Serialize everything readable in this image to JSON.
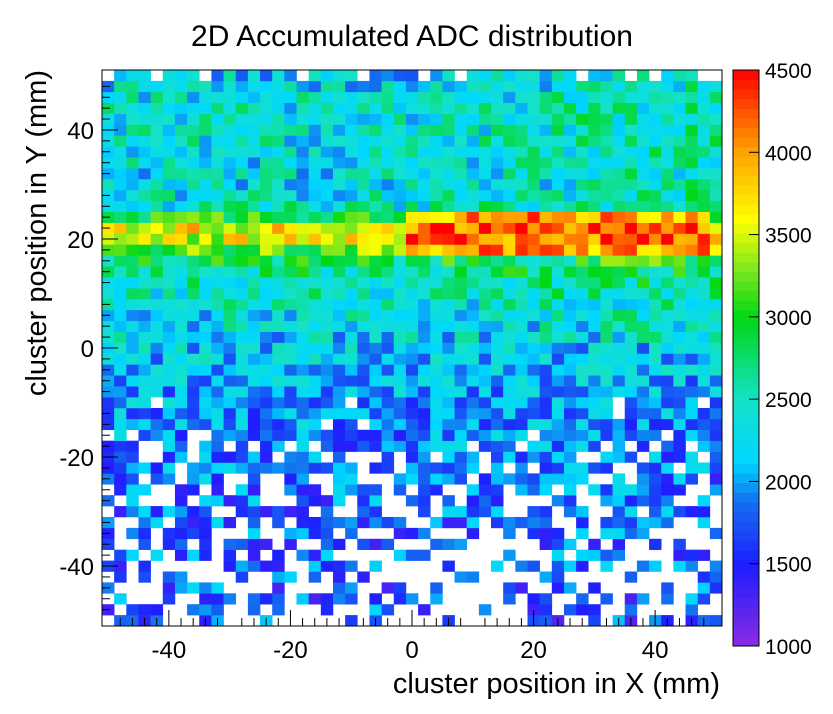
{
  "chart_data": {
    "type": "heatmap",
    "title": "2D Accumulated ADC distribution",
    "xlabel": "cluster position in X (mm)",
    "ylabel": "cluster position in Y (mm)",
    "xlim": [
      -51,
      51
    ],
    "ylim": [
      -51,
      51
    ],
    "x_ticks": [
      -40,
      -20,
      0,
      20,
      40
    ],
    "y_ticks": [
      -40,
      -20,
      0,
      20,
      40
    ],
    "bins": {
      "nx": 51,
      "ny": 51,
      "x_min": -51,
      "x_max": 51,
      "y_min": -51,
      "y_max": 51
    },
    "zlim": [
      1000,
      4500
    ],
    "colorbar_ticks": [
      1000,
      1500,
      2000,
      2500,
      3000,
      3500,
      4000,
      4500
    ],
    "palette": "rainbow",
    "empty_bins": "white",
    "grid": false,
    "row_means": [
      {
        "y": 50,
        "adc": 2200
      },
      {
        "y": 46,
        "adc": 2350
      },
      {
        "y": 42,
        "adc": 2400
      },
      {
        "y": 36,
        "adc": 2350
      },
      {
        "y": 30,
        "adc": 2300
      },
      {
        "y": 26,
        "adc": 2450
      },
      {
        "y": 22,
        "adc": 3650
      },
      {
        "y": 20,
        "adc": 3500
      },
      {
        "y": 16,
        "adc": 2800
      },
      {
        "y": 12,
        "adc": 2500
      },
      {
        "y": 6,
        "adc": 2300
      },
      {
        "y": 0,
        "adc": 2150
      },
      {
        "y": -6,
        "adc": 2050
      },
      {
        "y": -12,
        "adc": 1950
      },
      {
        "y": -20,
        "adc": 1850
      },
      {
        "y": -30,
        "adc": 1800
      },
      {
        "y": -40,
        "adc": 1750
      },
      {
        "y": -50,
        "adc": 1700
      }
    ],
    "hot_region": {
      "x_range": [
        0,
        48
      ],
      "y_range": [
        17,
        25
      ],
      "adc": 4300
    }
  }
}
